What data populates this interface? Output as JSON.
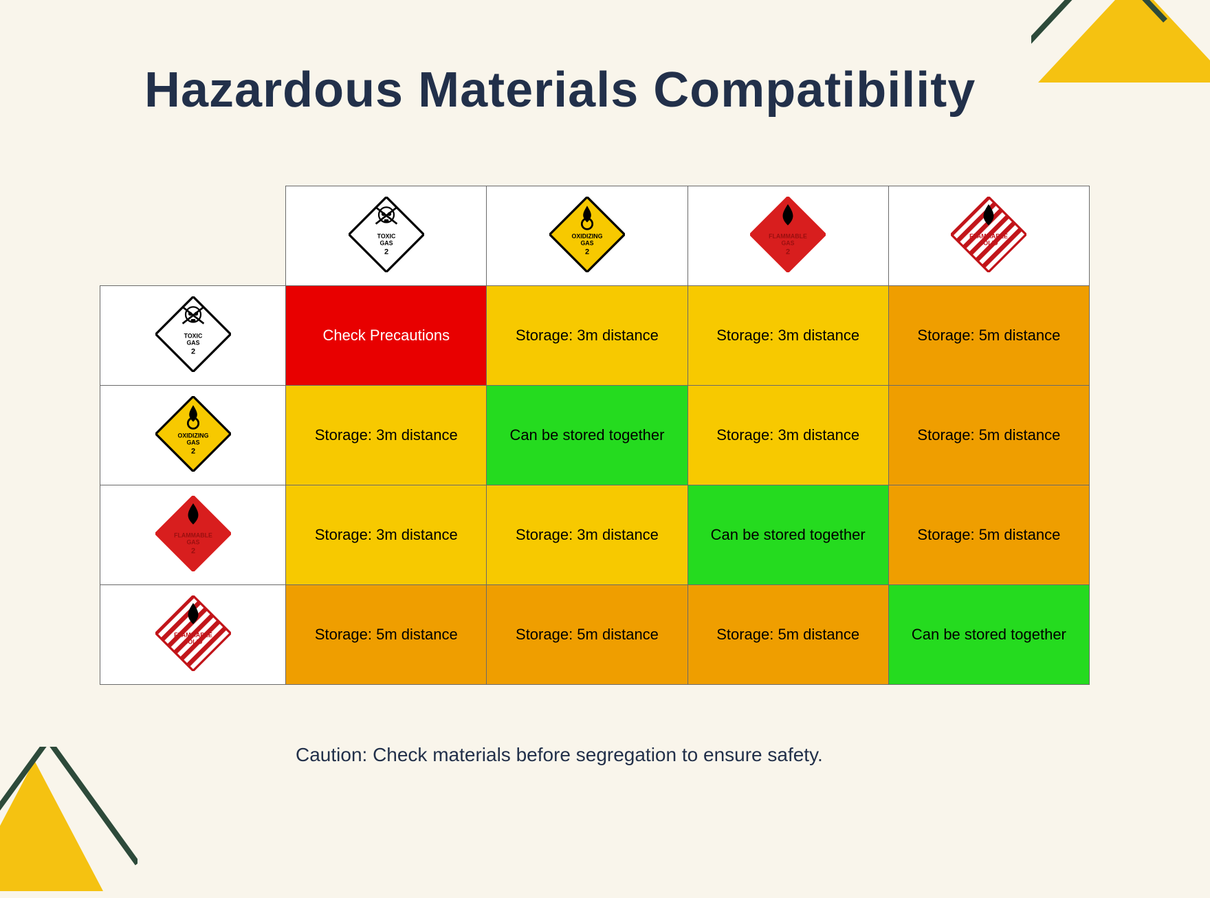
{
  "title": "Hazardous Materials Compatibility",
  "caption": "Caution: Check materials before segregation to ensure safety.",
  "colors": {
    "background": "#f9f5eb",
    "title": "#22304a",
    "border": "#6a6a6a",
    "cell_red": "#e80000",
    "cell_yellow": "#f7c900",
    "cell_orange": "#ef9e00",
    "cell_green": "#25db1f",
    "triangle_fill": "#f5c211",
    "triangle_stroke": "#2d4a3a"
  },
  "hazards": [
    {
      "id": "toxic-gas",
      "label1": "TOXIC",
      "label2": "GAS",
      "num": "2",
      "bg": "#ffffff",
      "stroke": "#000000",
      "text": "#000000",
      "icon": "skull"
    },
    {
      "id": "oxidizing-gas",
      "label1": "OXIDIZING",
      "label2": "GAS",
      "num": "2",
      "bg": "#f7c900",
      "stroke": "#000000",
      "text": "#000000",
      "icon": "flame-o"
    },
    {
      "id": "flammable-gas",
      "label1": "FLAMMABLE",
      "label2": "GAS",
      "num": "2",
      "bg": "#d81e1e",
      "stroke": "#d81e1e",
      "text": "#9a0f0f",
      "icon": "flame"
    },
    {
      "id": "flammable-solid",
      "label1": "FLAMMABLE",
      "label2": "SOLID",
      "num": "",
      "bg": "stripes",
      "stroke": "#c2151a",
      "text": "#c2151a",
      "icon": "flame"
    }
  ],
  "matrix": [
    [
      {
        "text": "Check Precautions",
        "color": "cell_red"
      },
      {
        "text": "Storage: 3m distance",
        "color": "cell_yellow"
      },
      {
        "text": "Storage: 3m distance",
        "color": "cell_yellow"
      },
      {
        "text": "Storage: 5m distance",
        "color": "cell_orange"
      }
    ],
    [
      {
        "text": "Storage: 3m distance",
        "color": "cell_yellow"
      },
      {
        "text": "Can be stored together",
        "color": "cell_green"
      },
      {
        "text": "Storage: 3m distance",
        "color": "cell_yellow"
      },
      {
        "text": "Storage: 5m distance",
        "color": "cell_orange"
      }
    ],
    [
      {
        "text": "Storage: 3m distance",
        "color": "cell_yellow"
      },
      {
        "text": "Storage: 3m distance",
        "color": "cell_yellow"
      },
      {
        "text": "Can be stored together",
        "color": "cell_green"
      },
      {
        "text": "Storage: 5m distance",
        "color": "cell_orange"
      }
    ],
    [
      {
        "text": "Storage: 5m distance",
        "color": "cell_orange"
      },
      {
        "text": "Storage: 5m distance",
        "color": "cell_orange"
      },
      {
        "text": "Storage: 5m distance",
        "color": "cell_orange"
      },
      {
        "text": "Can be stored together",
        "color": "cell_green"
      }
    ]
  ],
  "typography": {
    "title_fontsize": 72,
    "title_weight": 900,
    "cell_fontsize": 22,
    "caption_fontsize": 28
  }
}
